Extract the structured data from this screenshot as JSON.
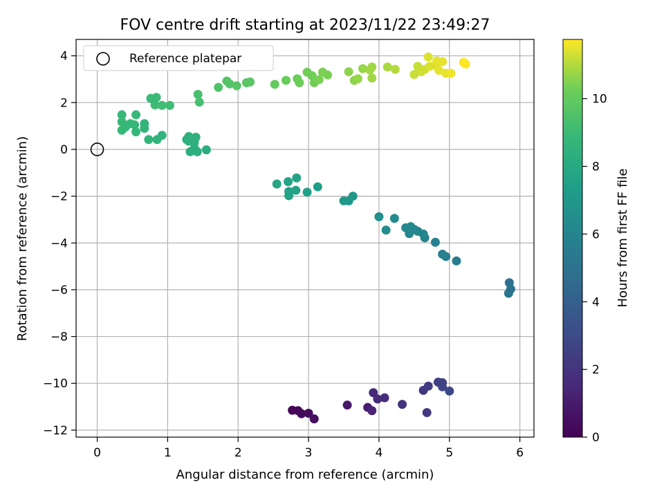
{
  "chart_data": {
    "type": "scatter",
    "title": "FOV centre drift starting at 2023/11/22 23:49:27",
    "xlabel": "Angular distance from reference (arcmin)",
    "ylabel": "Rotation from reference (arcmin)",
    "xlim": [
      -0.3,
      6.2
    ],
    "ylim": [
      -12.3,
      4.7
    ],
    "xticks": [
      0,
      1,
      2,
      3,
      4,
      5,
      6
    ],
    "yticks": [
      -12,
      -10,
      -8,
      -6,
      -4,
      -2,
      0,
      2,
      4
    ],
    "grid": true,
    "legend": {
      "position": "top-left",
      "entries": [
        "Reference platepar"
      ]
    },
    "reference_point": {
      "x": 0.0,
      "y": 0.0
    },
    "colorbar": {
      "label": "Hours from first FF file",
      "min": 0,
      "max": 11.75,
      "ticks": [
        0,
        2,
        4,
        6,
        8,
        10
      ],
      "colormap": "viridis"
    },
    "points": [
      {
        "x": 2.77,
        "y": -11.15,
        "h": 0.1
      },
      {
        "x": 2.85,
        "y": -11.17,
        "h": 0.2
      },
      {
        "x": 2.9,
        "y": -11.3,
        "h": 0.3
      },
      {
        "x": 3.0,
        "y": -11.28,
        "h": 0.4
      },
      {
        "x": 3.08,
        "y": -11.52,
        "h": 0.5
      },
      {
        "x": 3.55,
        "y": -10.93,
        "h": 0.9
      },
      {
        "x": 3.84,
        "y": -11.03,
        "h": 1.1
      },
      {
        "x": 3.9,
        "y": -11.17,
        "h": 1.3
      },
      {
        "x": 3.92,
        "y": -10.4,
        "h": 1.5
      },
      {
        "x": 3.98,
        "y": -10.67,
        "h": 1.6
      },
      {
        "x": 4.08,
        "y": -10.62,
        "h": 1.7
      },
      {
        "x": 4.33,
        "y": -10.9,
        "h": 1.9
      },
      {
        "x": 4.63,
        "y": -10.3,
        "h": 2.1
      },
      {
        "x": 4.68,
        "y": -11.25,
        "h": 2.2
      },
      {
        "x": 4.7,
        "y": -10.12,
        "h": 2.3
      },
      {
        "x": 4.84,
        "y": -9.95,
        "h": 2.5
      },
      {
        "x": 4.9,
        "y": -9.97,
        "h": 2.6
      },
      {
        "x": 4.9,
        "y": -10.15,
        "h": 2.7
      },
      {
        "x": 5.0,
        "y": -10.33,
        "h": 2.9
      },
      {
        "x": 5.85,
        "y": -5.7,
        "h": 4.9
      },
      {
        "x": 5.87,
        "y": -5.97,
        "h": 5.0
      },
      {
        "x": 5.84,
        "y": -6.15,
        "h": 5.1
      },
      {
        "x": 5.1,
        "y": -4.77,
        "h": 5.6
      },
      {
        "x": 4.95,
        "y": -4.58,
        "h": 5.7
      },
      {
        "x": 4.9,
        "y": -4.48,
        "h": 5.8
      },
      {
        "x": 4.8,
        "y": -3.97,
        "h": 5.9
      },
      {
        "x": 4.65,
        "y": -3.78,
        "h": 6.0
      },
      {
        "x": 4.63,
        "y": -3.62,
        "h": 6.0
      },
      {
        "x": 4.55,
        "y": -3.5,
        "h": 6.1
      },
      {
        "x": 4.5,
        "y": -3.42,
        "h": 6.1
      },
      {
        "x": 4.45,
        "y": -3.3,
        "h": 6.2
      },
      {
        "x": 4.38,
        "y": -3.35,
        "h": 6.2
      },
      {
        "x": 4.43,
        "y": -3.6,
        "h": 6.2
      },
      {
        "x": 4.22,
        "y": -2.95,
        "h": 6.4
      },
      {
        "x": 4.1,
        "y": -3.45,
        "h": 6.5
      },
      {
        "x": 4.0,
        "y": -2.88,
        "h": 6.6
      },
      {
        "x": 3.63,
        "y": -2.0,
        "h": 7.0
      },
      {
        "x": 3.57,
        "y": -2.2,
        "h": 7.1
      },
      {
        "x": 3.5,
        "y": -2.2,
        "h": 7.1
      },
      {
        "x": 3.13,
        "y": -1.6,
        "h": 7.4
      },
      {
        "x": 2.98,
        "y": -1.83,
        "h": 7.5
      },
      {
        "x": 2.82,
        "y": -1.75,
        "h": 7.5
      },
      {
        "x": 2.72,
        "y": -1.8,
        "h": 7.6
      },
      {
        "x": 2.72,
        "y": -1.98,
        "h": 7.6
      },
      {
        "x": 2.71,
        "y": -1.38,
        "h": 7.7
      },
      {
        "x": 2.83,
        "y": -1.22,
        "h": 7.7
      },
      {
        "x": 2.55,
        "y": -1.48,
        "h": 7.8
      },
      {
        "x": 1.55,
        "y": -0.02,
        "h": 8.2
      },
      {
        "x": 1.42,
        "y": -0.1,
        "h": 8.3
      },
      {
        "x": 1.32,
        "y": -0.1,
        "h": 8.3
      },
      {
        "x": 1.38,
        "y": 0.05,
        "h": 8.3
      },
      {
        "x": 1.3,
        "y": 0.35,
        "h": 8.4
      },
      {
        "x": 1.38,
        "y": 0.3,
        "h": 8.4
      },
      {
        "x": 1.4,
        "y": 0.52,
        "h": 8.4
      },
      {
        "x": 1.3,
        "y": 0.55,
        "h": 8.4
      },
      {
        "x": 1.27,
        "y": 0.42,
        "h": 8.4
      },
      {
        "x": 0.92,
        "y": 0.6,
        "h": 8.6
      },
      {
        "x": 0.85,
        "y": 0.42,
        "h": 8.6
      },
      {
        "x": 0.73,
        "y": 0.42,
        "h": 8.7
      },
      {
        "x": 0.67,
        "y": 0.9,
        "h": 8.7
      },
      {
        "x": 0.67,
        "y": 1.1,
        "h": 8.7
      },
      {
        "x": 0.55,
        "y": 0.75,
        "h": 8.8
      },
      {
        "x": 0.53,
        "y": 1.05,
        "h": 8.8
      },
      {
        "x": 0.47,
        "y": 1.1,
        "h": 8.8
      },
      {
        "x": 0.4,
        "y": 0.95,
        "h": 8.8
      },
      {
        "x": 0.35,
        "y": 0.82,
        "h": 8.9
      },
      {
        "x": 0.35,
        "y": 1.18,
        "h": 8.9
      },
      {
        "x": 0.35,
        "y": 1.48,
        "h": 8.9
      },
      {
        "x": 0.55,
        "y": 1.48,
        "h": 8.9
      },
      {
        "x": 0.76,
        "y": 2.18,
        "h": 9.0
      },
      {
        "x": 0.84,
        "y": 2.22,
        "h": 9.0
      },
      {
        "x": 0.82,
        "y": 1.9,
        "h": 9.0
      },
      {
        "x": 0.92,
        "y": 1.88,
        "h": 9.1
      },
      {
        "x": 1.03,
        "y": 1.88,
        "h": 9.1
      },
      {
        "x": 1.45,
        "y": 2.02,
        "h": 9.3
      },
      {
        "x": 1.43,
        "y": 2.35,
        "h": 9.3
      },
      {
        "x": 1.72,
        "y": 2.65,
        "h": 9.5
      },
      {
        "x": 1.84,
        "y": 2.92,
        "h": 9.6
      },
      {
        "x": 1.88,
        "y": 2.8,
        "h": 9.6
      },
      {
        "x": 1.98,
        "y": 2.72,
        "h": 9.7
      },
      {
        "x": 2.12,
        "y": 2.85,
        "h": 9.8
      },
      {
        "x": 2.17,
        "y": 2.88,
        "h": 9.8
      },
      {
        "x": 2.52,
        "y": 2.78,
        "h": 10.0
      },
      {
        "x": 2.68,
        "y": 2.95,
        "h": 10.1
      },
      {
        "x": 2.84,
        "y": 3.02,
        "h": 10.2
      },
      {
        "x": 2.87,
        "y": 2.85,
        "h": 10.2
      },
      {
        "x": 2.98,
        "y": 3.3,
        "h": 10.3
      },
      {
        "x": 3.05,
        "y": 3.15,
        "h": 10.3
      },
      {
        "x": 3.08,
        "y": 2.85,
        "h": 10.3
      },
      {
        "x": 3.15,
        "y": 2.98,
        "h": 10.4
      },
      {
        "x": 3.2,
        "y": 3.3,
        "h": 10.4
      },
      {
        "x": 3.27,
        "y": 3.18,
        "h": 10.4
      },
      {
        "x": 3.57,
        "y": 3.32,
        "h": 10.6
      },
      {
        "x": 3.65,
        "y": 2.95,
        "h": 10.6
      },
      {
        "x": 3.7,
        "y": 3.02,
        "h": 10.7
      },
      {
        "x": 3.77,
        "y": 3.45,
        "h": 10.7
      },
      {
        "x": 3.87,
        "y": 3.4,
        "h": 10.8
      },
      {
        "x": 3.9,
        "y": 3.52,
        "h": 10.8
      },
      {
        "x": 3.9,
        "y": 3.05,
        "h": 10.8
      },
      {
        "x": 4.12,
        "y": 3.52,
        "h": 10.9
      },
      {
        "x": 4.23,
        "y": 3.42,
        "h": 11.0
      },
      {
        "x": 4.5,
        "y": 3.2,
        "h": 11.2
      },
      {
        "x": 4.55,
        "y": 3.55,
        "h": 11.2
      },
      {
        "x": 4.6,
        "y": 3.32,
        "h": 11.3
      },
      {
        "x": 4.65,
        "y": 3.42,
        "h": 11.3
      },
      {
        "x": 4.7,
        "y": 3.95,
        "h": 11.4
      },
      {
        "x": 4.72,
        "y": 3.55,
        "h": 11.4
      },
      {
        "x": 4.8,
        "y": 3.6,
        "h": 11.4
      },
      {
        "x": 4.82,
        "y": 3.78,
        "h": 11.5
      },
      {
        "x": 4.85,
        "y": 3.38,
        "h": 11.5
      },
      {
        "x": 4.9,
        "y": 3.75,
        "h": 11.5
      },
      {
        "x": 4.95,
        "y": 3.25,
        "h": 11.5
      },
      {
        "x": 5.02,
        "y": 3.25,
        "h": 11.6
      },
      {
        "x": 5.2,
        "y": 3.72,
        "h": 11.7
      },
      {
        "x": 5.23,
        "y": 3.65,
        "h": 11.75
      }
    ]
  }
}
